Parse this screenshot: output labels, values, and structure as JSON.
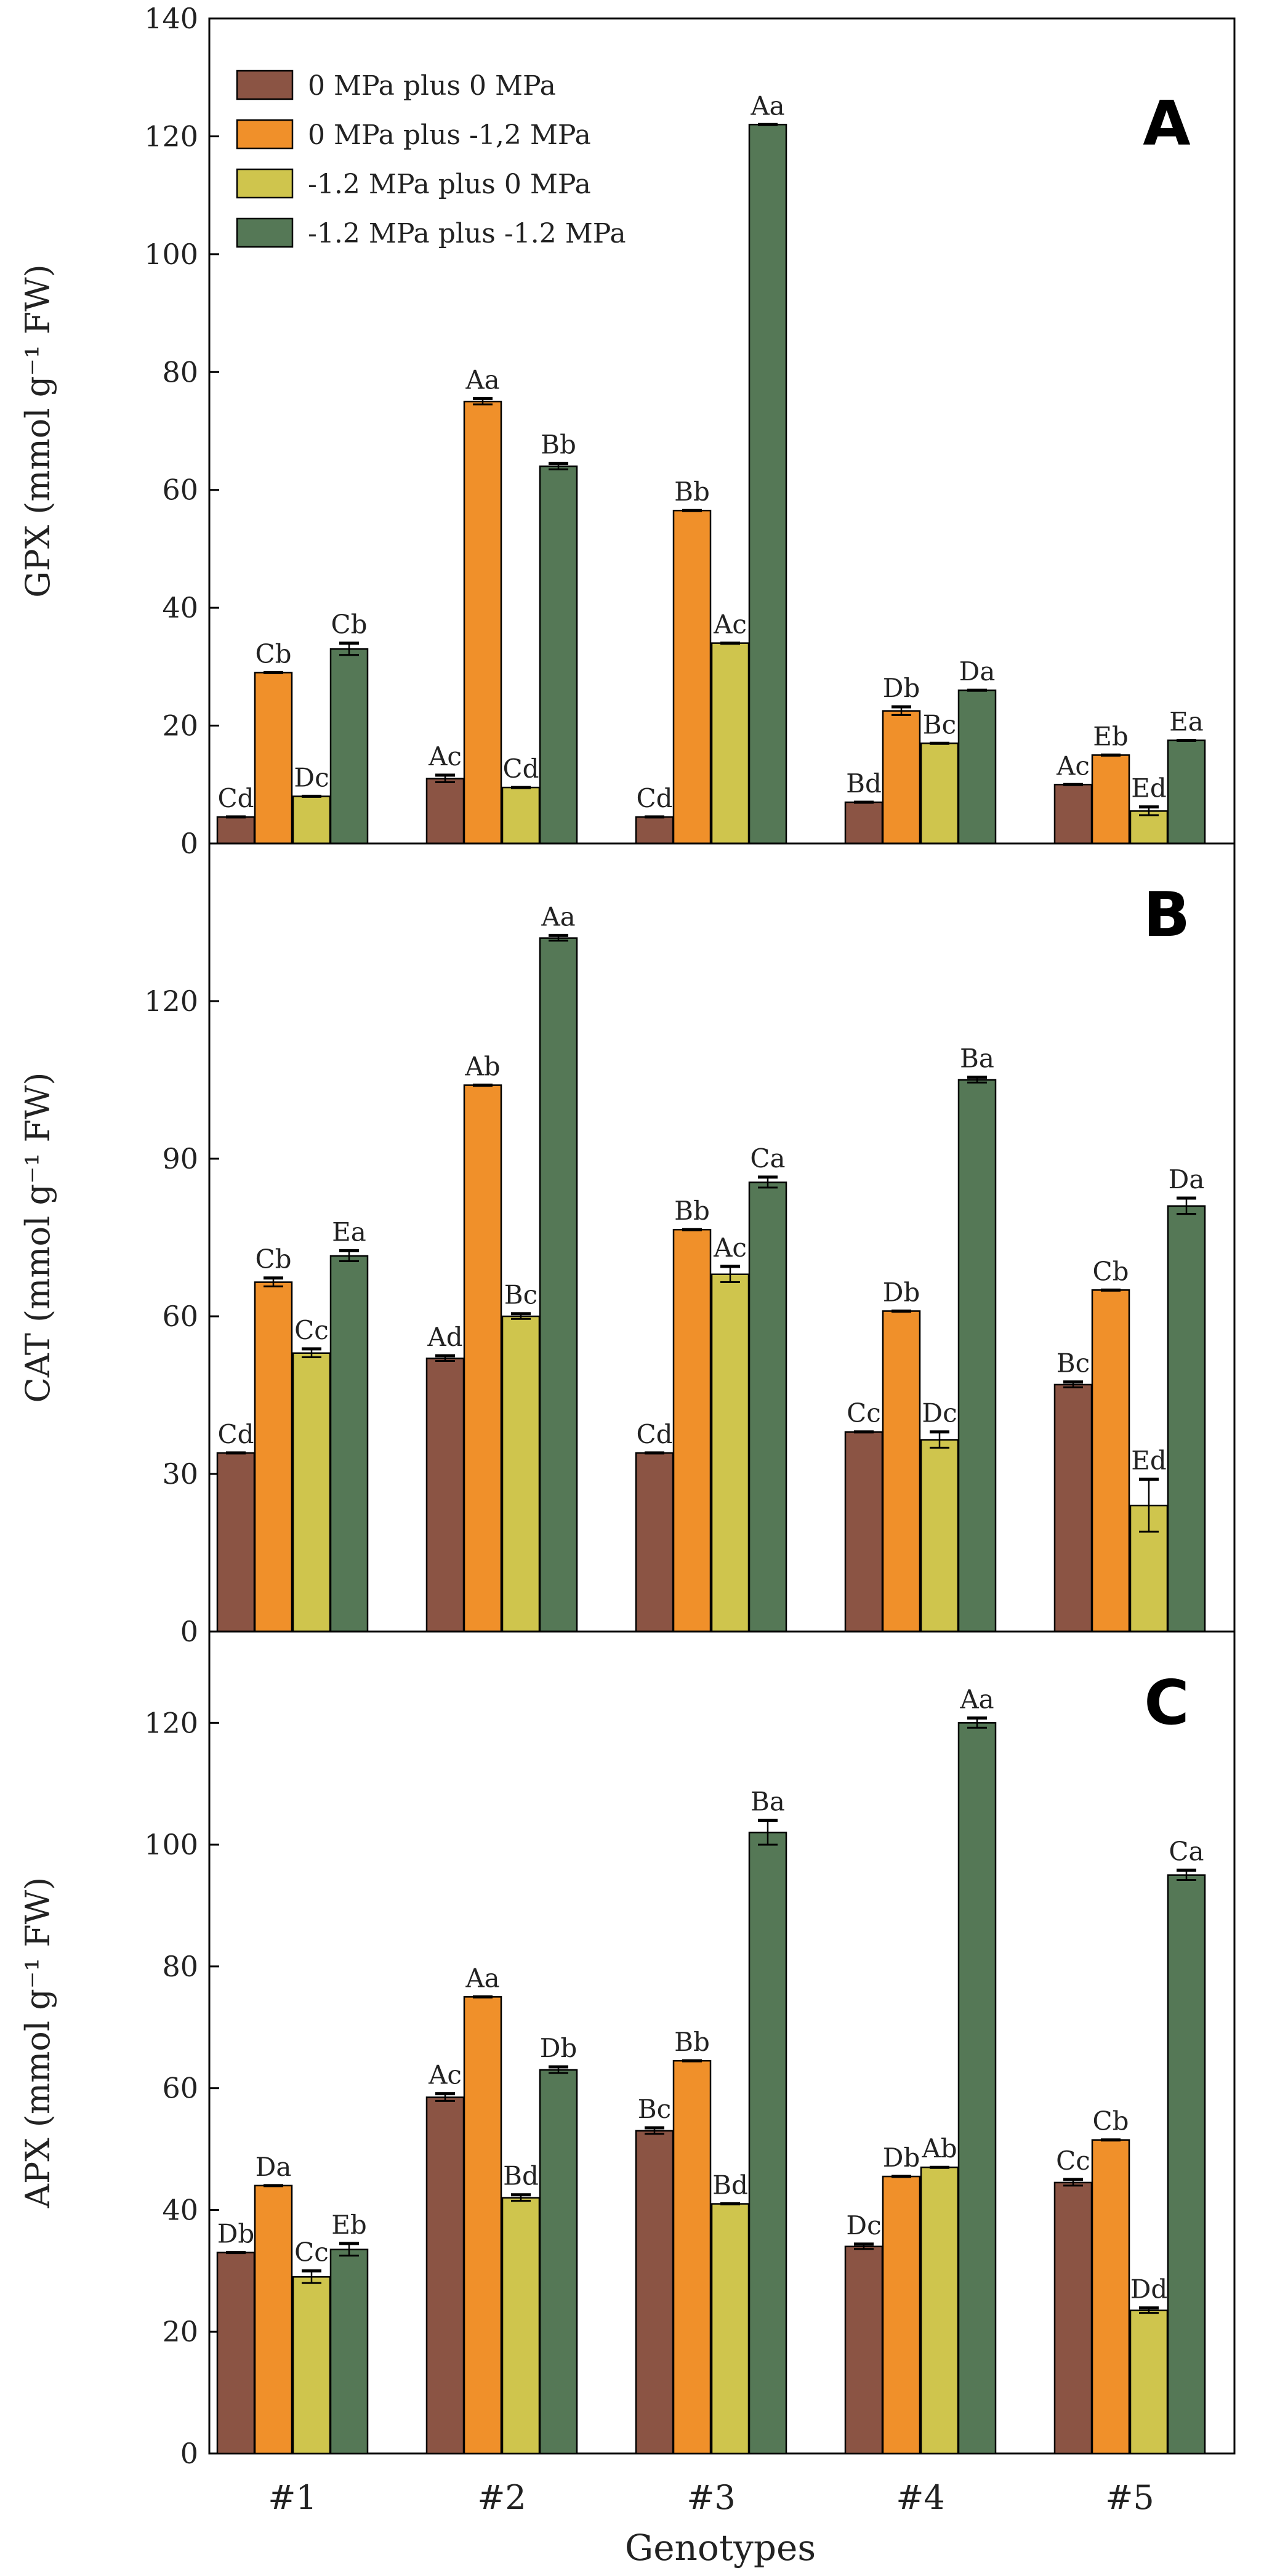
{
  "chart_data": {
    "type": "bar",
    "xlabel": "Genotypes",
    "categories": [
      "#1",
      "#2",
      "#3",
      "#4",
      "#5"
    ],
    "legend": {
      "placement": "top-left of panel A",
      "entries": [
        {
          "name": "0 MPa plus 0 MPa",
          "color": "#8B5444"
        },
        {
          "name": "0 MPa plus -1,2 MPa",
          "color": "#F0902A"
        },
        {
          "name": "-1.2 MPa plus 0 MPa",
          "color": "#CFC54D"
        },
        {
          "name": "-1.2 MPa plus -1.2 MPa",
          "color": "#557856"
        }
      ]
    },
    "panels": [
      {
        "letter": "A",
        "ylabel": "GPX (mmol g⁻¹ FW)",
        "ylim": [
          0,
          140
        ],
        "yticks": [
          0,
          20,
          40,
          60,
          80,
          100,
          120,
          140
        ],
        "series": [
          {
            "name": "0 MPa plus 0 MPa",
            "values": [
              4.5,
              11,
              4.5,
              7,
              10
            ],
            "errors": [
              0,
              0.6,
              0,
              0,
              0
            ],
            "labels": [
              "Cd",
              "Ac",
              "Cd",
              "Bd",
              "Ac"
            ]
          },
          {
            "name": "0 MPa plus -1,2 MPa",
            "values": [
              29,
              75,
              56.5,
              22.5,
              15
            ],
            "errors": [
              0,
              0.5,
              0,
              0.7,
              0
            ],
            "labels": [
              "Cb",
              "Aa",
              "Bb",
              "Db",
              "Eb"
            ]
          },
          {
            "name": "-1.2 MPa plus 0 MPa",
            "values": [
              8,
              9.5,
              34,
              17,
              5.5
            ],
            "errors": [
              0,
              0,
              0,
              0,
              0.7
            ],
            "labels": [
              "Dc",
              "Cd",
              "Ac",
              "Bc",
              "Ed"
            ]
          },
          {
            "name": "-1.2 MPa plus -1.2 MPa",
            "values": [
              33,
              64,
              122,
              26,
              17.5
            ],
            "errors": [
              1,
              0.5,
              0,
              0,
              0
            ],
            "labels": [
              "Cb",
              "Bb",
              "Aa",
              "Da",
              "Ea"
            ]
          }
        ]
      },
      {
        "letter": "B",
        "ylabel": "CAT (mmol g⁻¹ FW)",
        "ylim": [
          0,
          150
        ],
        "yticks": [
          0,
          30,
          60,
          90,
          120
        ],
        "series": [
          {
            "name": "0 MPa plus 0 MPa",
            "values": [
              34,
              52,
              34,
              38,
              47
            ],
            "errors": [
              0,
              0.5,
              0,
              0,
              0.5
            ],
            "labels": [
              "Cd",
              "Ad",
              "Cd",
              "Cc",
              "Bc"
            ]
          },
          {
            "name": "0 MPa plus -1,2 MPa",
            "values": [
              66.5,
              104,
              76.5,
              61,
              65
            ],
            "errors": [
              0.8,
              0,
              0,
              0,
              0
            ],
            "labels": [
              "Cb",
              "Ab",
              "Bb",
              "Db",
              "Cb"
            ]
          },
          {
            "name": "-1.2 MPa plus 0 MPa",
            "values": [
              53,
              60,
              68,
              36.5,
              24
            ],
            "errors": [
              0.8,
              0.5,
              1.5,
              1.5,
              5
            ],
            "labels": [
              "Cc",
              "Bc",
              "Ac",
              "Dc",
              "Ed"
            ]
          },
          {
            "name": "-1.2 MPa plus -1.2 MPa",
            "values": [
              71.5,
              132,
              85.5,
              105,
              81
            ],
            "errors": [
              1,
              0.5,
              1,
              0.5,
              1.5
            ],
            "labels": [
              "Ea",
              "Aa",
              "Ca",
              "Ba",
              "Da"
            ]
          }
        ]
      },
      {
        "letter": "C",
        "ylabel": "APX (mmol g⁻¹ FW)",
        "ylim": [
          0,
          135
        ],
        "yticks": [
          0,
          20,
          40,
          60,
          80,
          100,
          120
        ],
        "series": [
          {
            "name": "0 MPa plus 0 MPa",
            "values": [
              33,
              58.5,
              53,
              34,
              44.5
            ],
            "errors": [
              0,
              0.6,
              0.5,
              0.4,
              0.5
            ],
            "labels": [
              "Db",
              "Ac",
              "Bc",
              "Dc",
              "Cc"
            ]
          },
          {
            "name": "0 MPa plus -1,2 MPa",
            "values": [
              44,
              75,
              64.5,
              45.5,
              51.5
            ],
            "errors": [
              0,
              0,
              0,
              0,
              0
            ],
            "labels": [
              "Da",
              "Aa",
              "Bb",
              "Db",
              "Cb"
            ]
          },
          {
            "name": "-1.2 MPa plus 0 MPa",
            "values": [
              29,
              42,
              41,
              47,
              23.5
            ],
            "errors": [
              1,
              0.5,
              0,
              0,
              0.4
            ],
            "labels": [
              "Cc",
              "Bd",
              "Bd",
              "Ab",
              "Dd"
            ]
          },
          {
            "name": "-1.2 MPa plus -1.2 MPa",
            "values": [
              33.5,
              63,
              102,
              120,
              95
            ],
            "errors": [
              1,
              0.5,
              2,
              0.8,
              0.8
            ],
            "labels": [
              "Eb",
              "Db",
              "Ba",
              "Aa",
              "Ca"
            ]
          }
        ]
      }
    ]
  }
}
